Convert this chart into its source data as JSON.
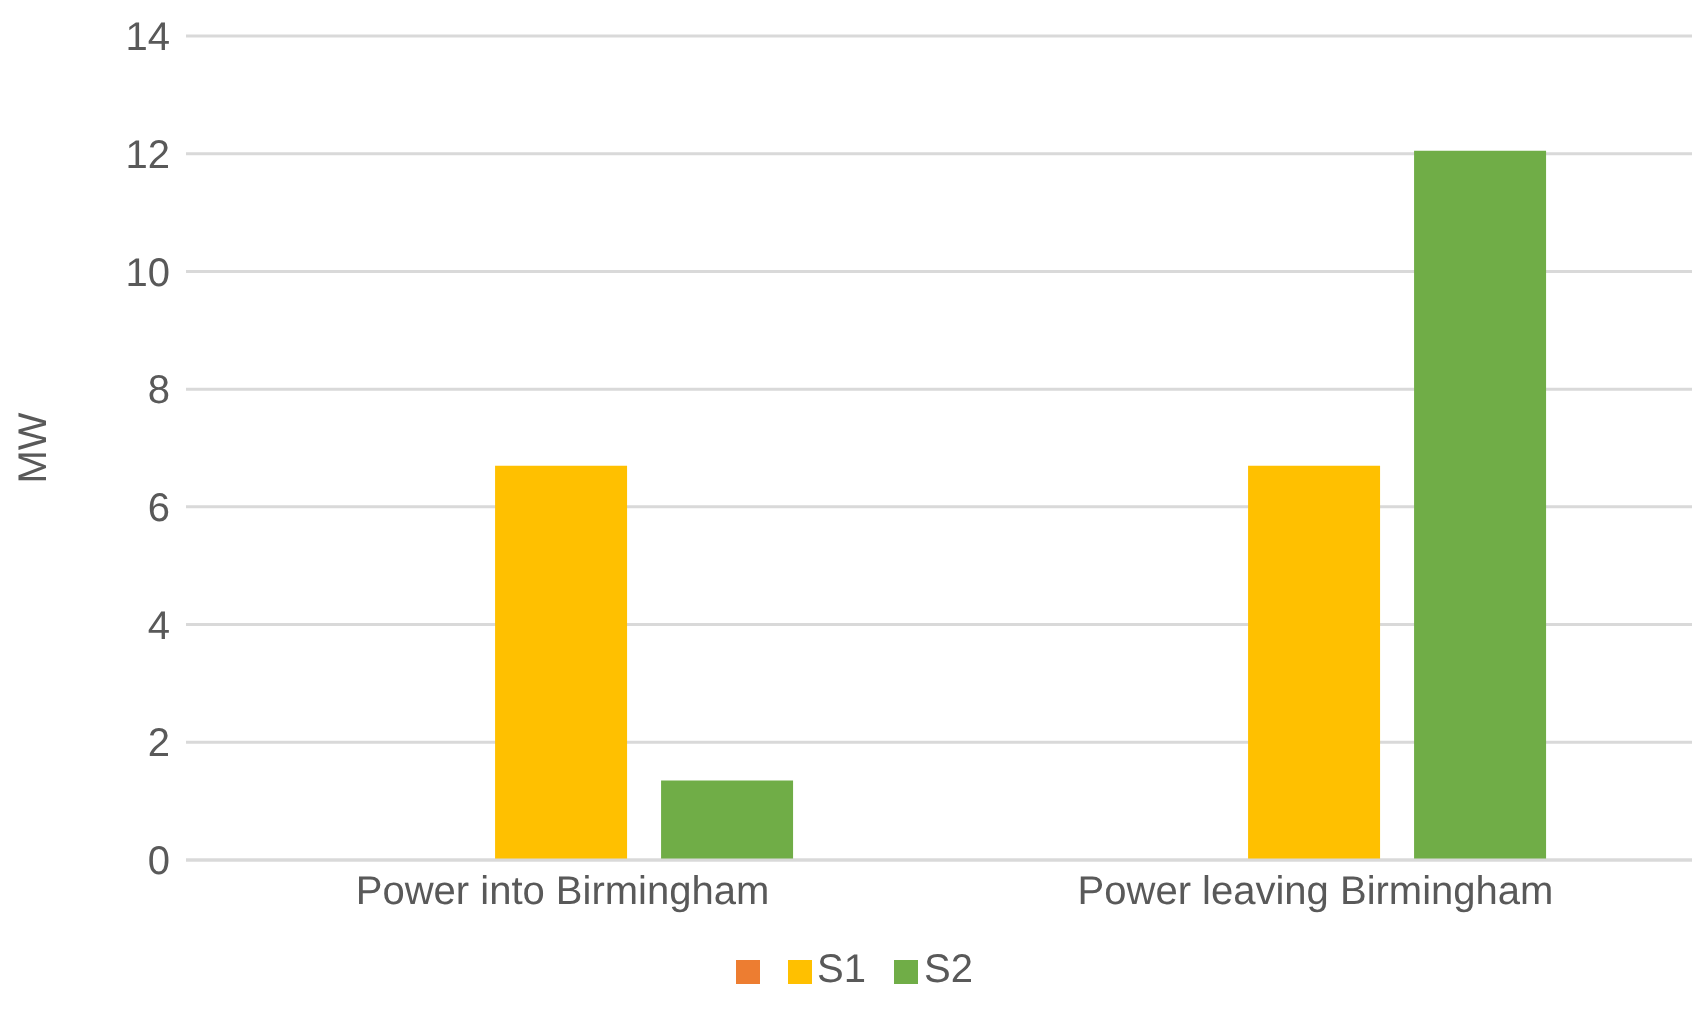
{
  "chart_data": {
    "type": "bar",
    "ylabel": "MW",
    "categories": [
      "Power into Birmingham",
      "Power leaving Birmingham"
    ],
    "series": [
      {
        "color": "#ed7d31",
        "values": [
          0,
          0
        ]
      },
      {
        "name": "S1",
        "color": "#ffc000",
        "values": [
          6.7,
          6.7
        ]
      },
      {
        "name": "S2",
        "color": "#70ad47",
        "values": [
          1.35,
          12.05
        ]
      }
    ],
    "ylim": [
      0,
      14
    ],
    "yticks": [
      0,
      2,
      4,
      6,
      8,
      10,
      12,
      14
    ],
    "grid": "y",
    "legend": "bottom"
  }
}
